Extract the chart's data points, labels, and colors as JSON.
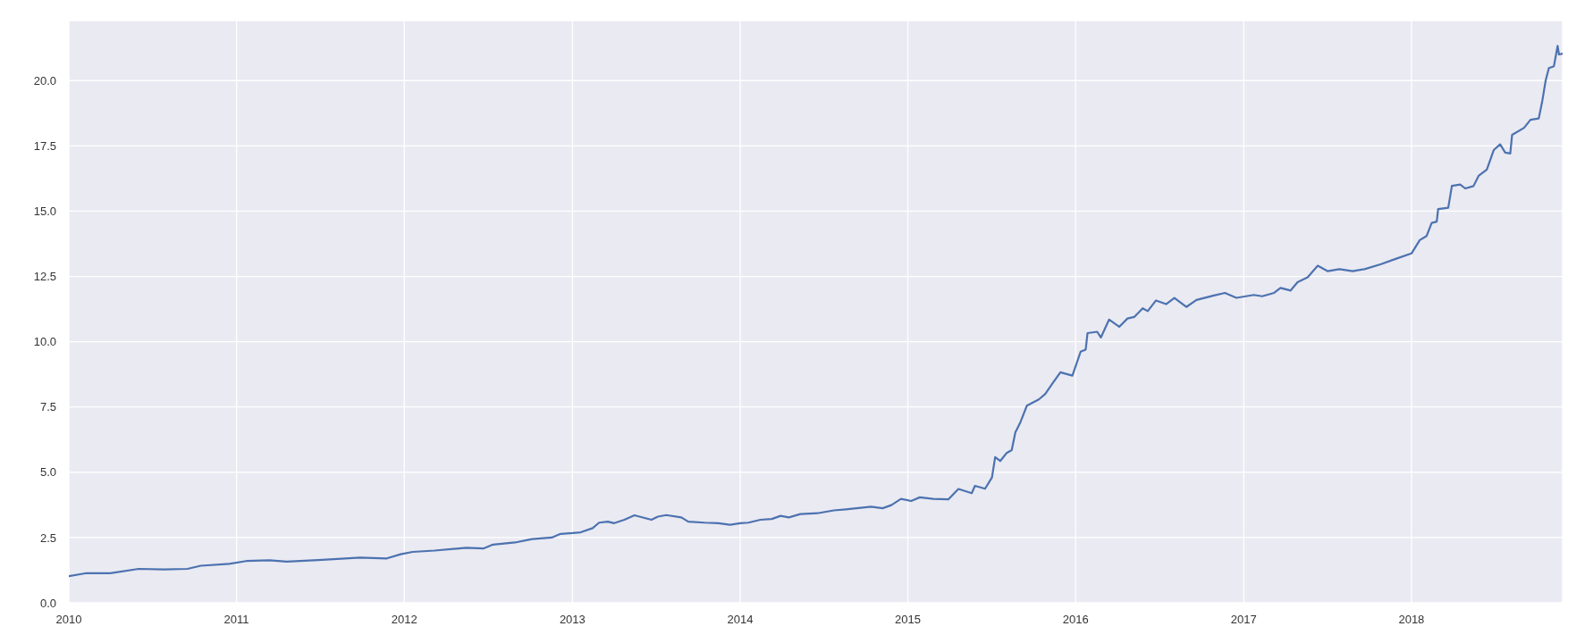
{
  "chart_data": {
    "type": "line",
    "color": "#4c72b0",
    "grid": true,
    "x": [
      "2010-01-01",
      "2010-02-06",
      "2010-04-01",
      "2010-06-02",
      "2010-07-27",
      "2010-09-16",
      "2010-10-15",
      "2010-12-16",
      "2011-01-22",
      "2011-03-14",
      "2011-04-20",
      "2011-06-28",
      "2011-09-27",
      "2011-11-24",
      "2011-12-24",
      "2012-01-19",
      "2012-03-07",
      "2012-05-15",
      "2012-06-21",
      "2012-07-12",
      "2012-08-29",
      "2012-10-05",
      "2012-11-17",
      "2012-12-06",
      "2013-01-01",
      "2013-01-19",
      "2013-02-14",
      "2013-02-28",
      "2013-03-19",
      "2013-04-02",
      "2013-04-24",
      "2013-05-16",
      "2013-06-22",
      "2013-07-06",
      "2013-07-24",
      "2013-08-26",
      "2013-09-10",
      "2013-10-16",
      "2013-11-15",
      "2013-12-10",
      "2014-01-01",
      "2014-01-19",
      "2014-02-14",
      "2014-03-11",
      "2014-03-30",
      "2014-04-17",
      "2014-05-12",
      "2014-06-18",
      "2014-07-24",
      "2014-08-19",
      "2014-10-13",
      "2014-11-07",
      "2014-11-26",
      "2014-12-17",
      "2015-01-08",
      "2015-01-27",
      "2015-02-25",
      "2015-03-30",
      "2015-04-21",
      "2015-05-20",
      "2015-05-27",
      "2015-06-18",
      "2015-07-03",
      "2015-07-10",
      "2015-07-21",
      "2015-08-04",
      "2015-08-15",
      "2015-08-23",
      "2015-09-03",
      "2015-09-17",
      "2015-10-13",
      "2015-10-27",
      "2015-11-11",
      "2015-11-29",
      "2015-12-25",
      "2016-01-12",
      "2016-01-23",
      "2016-01-27",
      "2016-02-17",
      "2016-02-25",
      "2016-03-14",
      "2016-04-05",
      "2016-04-23",
      "2016-05-08",
      "2016-05-26",
      "2016-06-06",
      "2016-06-24",
      "2016-07-16",
      "2016-08-03",
      "2016-08-29",
      "2016-09-20",
      "2016-10-26",
      "2016-11-21",
      "2016-12-16",
      "2017-01-23",
      "2017-02-10",
      "2017-03-08",
      "2017-03-22",
      "2017-04-13",
      "2017-04-28",
      "2017-05-20",
      "2017-06-11",
      "2017-07-03",
      "2017-07-28",
      "2017-08-26",
      "2017-09-21",
      "2017-10-27",
      "2017-11-29",
      "2018-01-01",
      "2018-01-19",
      "2018-02-03",
      "2018-02-14",
      "2018-02-25",
      "2018-02-28",
      "2018-03-22",
      "2018-03-30",
      "2018-04-17",
      "2018-04-28",
      "2018-05-16",
      "2018-05-27",
      "2018-06-14",
      "2018-06-29",
      "2018-07-13",
      "2018-07-24",
      "2018-08-04",
      "2018-08-08",
      "2018-09-03",
      "2018-09-17",
      "2018-10-05",
      "2018-10-13",
      "2018-10-20",
      "2018-10-27",
      "2018-11-07",
      "2018-11-15",
      "2018-11-18",
      "2018-11-26"
    ],
    "values": [
      1.02,
      1.13,
      1.13,
      1.3,
      1.28,
      1.3,
      1.42,
      1.49,
      1.6,
      1.63,
      1.58,
      1.64,
      1.73,
      1.7,
      1.86,
      1.95,
      2.0,
      2.11,
      2.08,
      2.23,
      2.31,
      2.44,
      2.5,
      2.64,
      2.67,
      2.7,
      2.86,
      3.07,
      3.11,
      3.05,
      3.18,
      3.35,
      3.18,
      3.3,
      3.36,
      3.27,
      3.11,
      3.07,
      3.05,
      2.99,
      3.05,
      3.07,
      3.18,
      3.21,
      3.33,
      3.27,
      3.4,
      3.43,
      3.54,
      3.58,
      3.68,
      3.62,
      3.74,
      3.98,
      3.9,
      4.04,
      3.98,
      3.96,
      4.36,
      4.2,
      4.48,
      4.37,
      4.8,
      5.58,
      5.43,
      5.74,
      5.85,
      6.53,
      6.92,
      7.55,
      7.79,
      8.0,
      8.38,
      8.83,
      8.7,
      9.62,
      9.7,
      10.33,
      10.38,
      10.16,
      10.85,
      10.57,
      10.89,
      10.95,
      11.28,
      11.17,
      11.58,
      11.44,
      11.68,
      11.33,
      11.6,
      11.76,
      11.87,
      11.68,
      11.79,
      11.74,
      11.87,
      12.06,
      11.96,
      12.28,
      12.47,
      12.91,
      12.7,
      12.78,
      12.7,
      12.78,
      12.97,
      13.18,
      13.38,
      13.89,
      14.05,
      14.55,
      14.6,
      15.08,
      15.13,
      15.97,
      16.02,
      15.87,
      15.96,
      16.35,
      16.59,
      17.34,
      17.56,
      17.24,
      17.21,
      17.92,
      18.19,
      18.5,
      18.55,
      19.25,
      20.0,
      20.48,
      20.55,
      21.33,
      21.0,
      21.03
    ],
    "xlim": [
      "2010-01-01",
      "2018-11-26"
    ],
    "xticks": [
      "2010",
      "2011",
      "2012",
      "2013",
      "2014",
      "2015",
      "2016",
      "2017",
      "2018"
    ],
    "ylim": [
      0,
      22.3
    ],
    "yticks": [
      {
        "value": 0,
        "label": "0.0"
      },
      {
        "value": 2.5,
        "label": "2.5"
      },
      {
        "value": 5,
        "label": "5.0"
      },
      {
        "value": 7.5,
        "label": "7.5"
      },
      {
        "value": 10,
        "label": "10.0"
      },
      {
        "value": 12.5,
        "label": "12.5"
      },
      {
        "value": 15,
        "label": "15.0"
      },
      {
        "value": 17.5,
        "label": "17.5"
      },
      {
        "value": 20,
        "label": "20.0"
      }
    ]
  }
}
